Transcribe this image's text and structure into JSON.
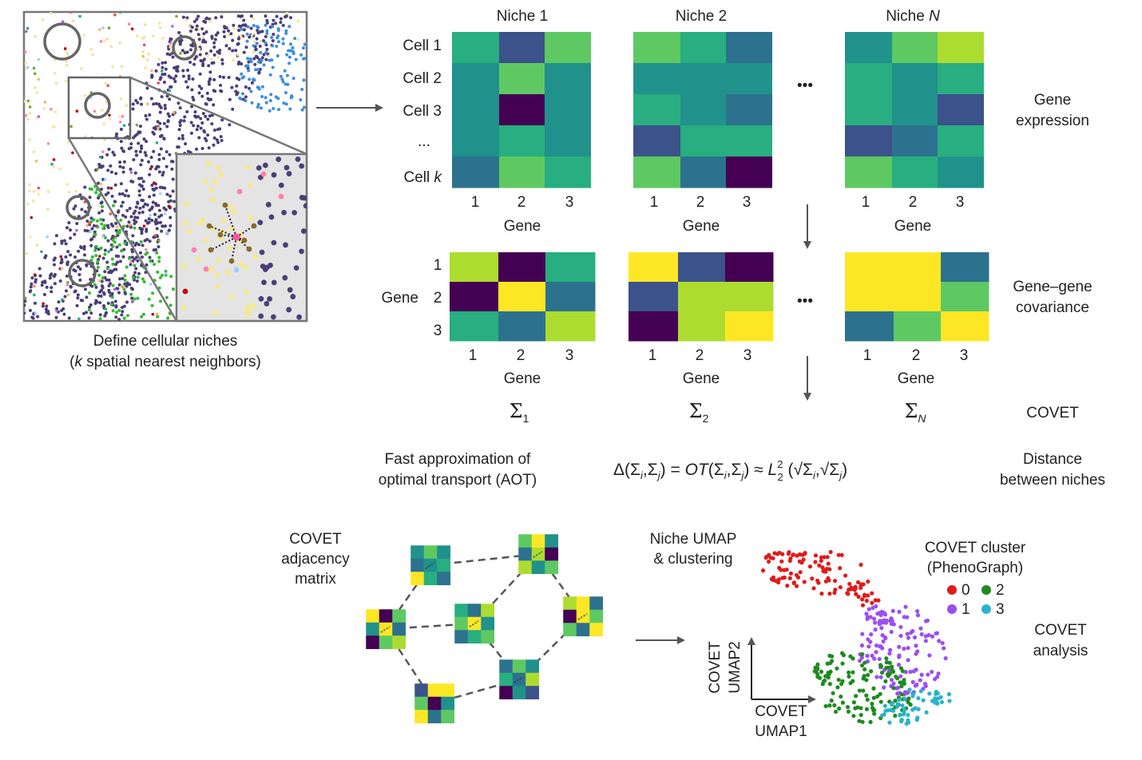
{
  "panel_tissue": {
    "caption_line1": "Define cellular niches",
    "caption_k": "k",
    "caption_line2_rest": " spatial nearest neighbors)"
  },
  "niches": [
    {
      "title": "Niche 1",
      "sigma_sub": "1"
    },
    {
      "title": "Niche 2",
      "sigma_sub": "2"
    },
    {
      "title": "Niche ",
      "title_italic": "N",
      "sigma_sub": "N"
    }
  ],
  "row_labels": {
    "cell1": "Cell 1",
    "cell2": "Cell 2",
    "cell3": "Cell 3",
    "dots": "...",
    "cellk_prefix": "Cell ",
    "cellk_italic": "k"
  },
  "gene_axis": {
    "label": "Gene",
    "ticks": [
      "1",
      "2",
      "3"
    ]
  },
  "cov_row_label": "Gene",
  "ellipsis": "•••",
  "side_labels": {
    "gene_expression": [
      "Gene",
      "expression"
    ],
    "covariance": [
      "Gene–gene",
      "covariance"
    ],
    "covet": "COVET",
    "distance": [
      "Distance",
      "between niches"
    ],
    "covet_analysis": [
      "COVET",
      "analysis"
    ]
  },
  "aot": [
    "Fast approximation of",
    "optimal transport (AOT)"
  ],
  "sigma_symbol": "Σ",
  "equation": {
    "p1": "Δ(Σ",
    "i": "i",
    "p2": ",Σ",
    "j": "j",
    "p3": ") = ",
    "ot": "OT",
    "p4": "(Σ",
    "p5": ",Σ",
    "p6": ") ≈ ",
    "L": "L",
    "sup": "2",
    "sub": "2",
    "p7": " (√Σ",
    "p8": ",√Σ",
    "p9": ")"
  },
  "adjacency": [
    "COVET",
    "adjacency",
    "matrix"
  ],
  "umap": {
    "title": [
      "Niche UMAP",
      "& clustering"
    ],
    "xlabel": [
      "COVET",
      "UMAP1"
    ],
    "ylabel": [
      "COVET",
      "UMAP2"
    ]
  },
  "cluster_legend": {
    "title": [
      "COVET cluster",
      "(PhenoGraph)"
    ],
    "entries": [
      {
        "label": "0",
        "color": "#e01b1b"
      },
      {
        "label": "2",
        "color": "#1f8a1f"
      },
      {
        "label": "1",
        "color": "#9b4ff0"
      },
      {
        "label": "3",
        "color": "#29b3cc"
      }
    ]
  },
  "colors": {
    "viridis": [
      "#440154",
      "#3b528b",
      "#2c728e",
      "#21918c",
      "#28ae80",
      "#5ec962",
      "#addc30",
      "#fde725"
    ],
    "arrow": "#555555",
    "tissue_bg": "#ffffff",
    "inset_bg": "#e4e4e4"
  }
}
